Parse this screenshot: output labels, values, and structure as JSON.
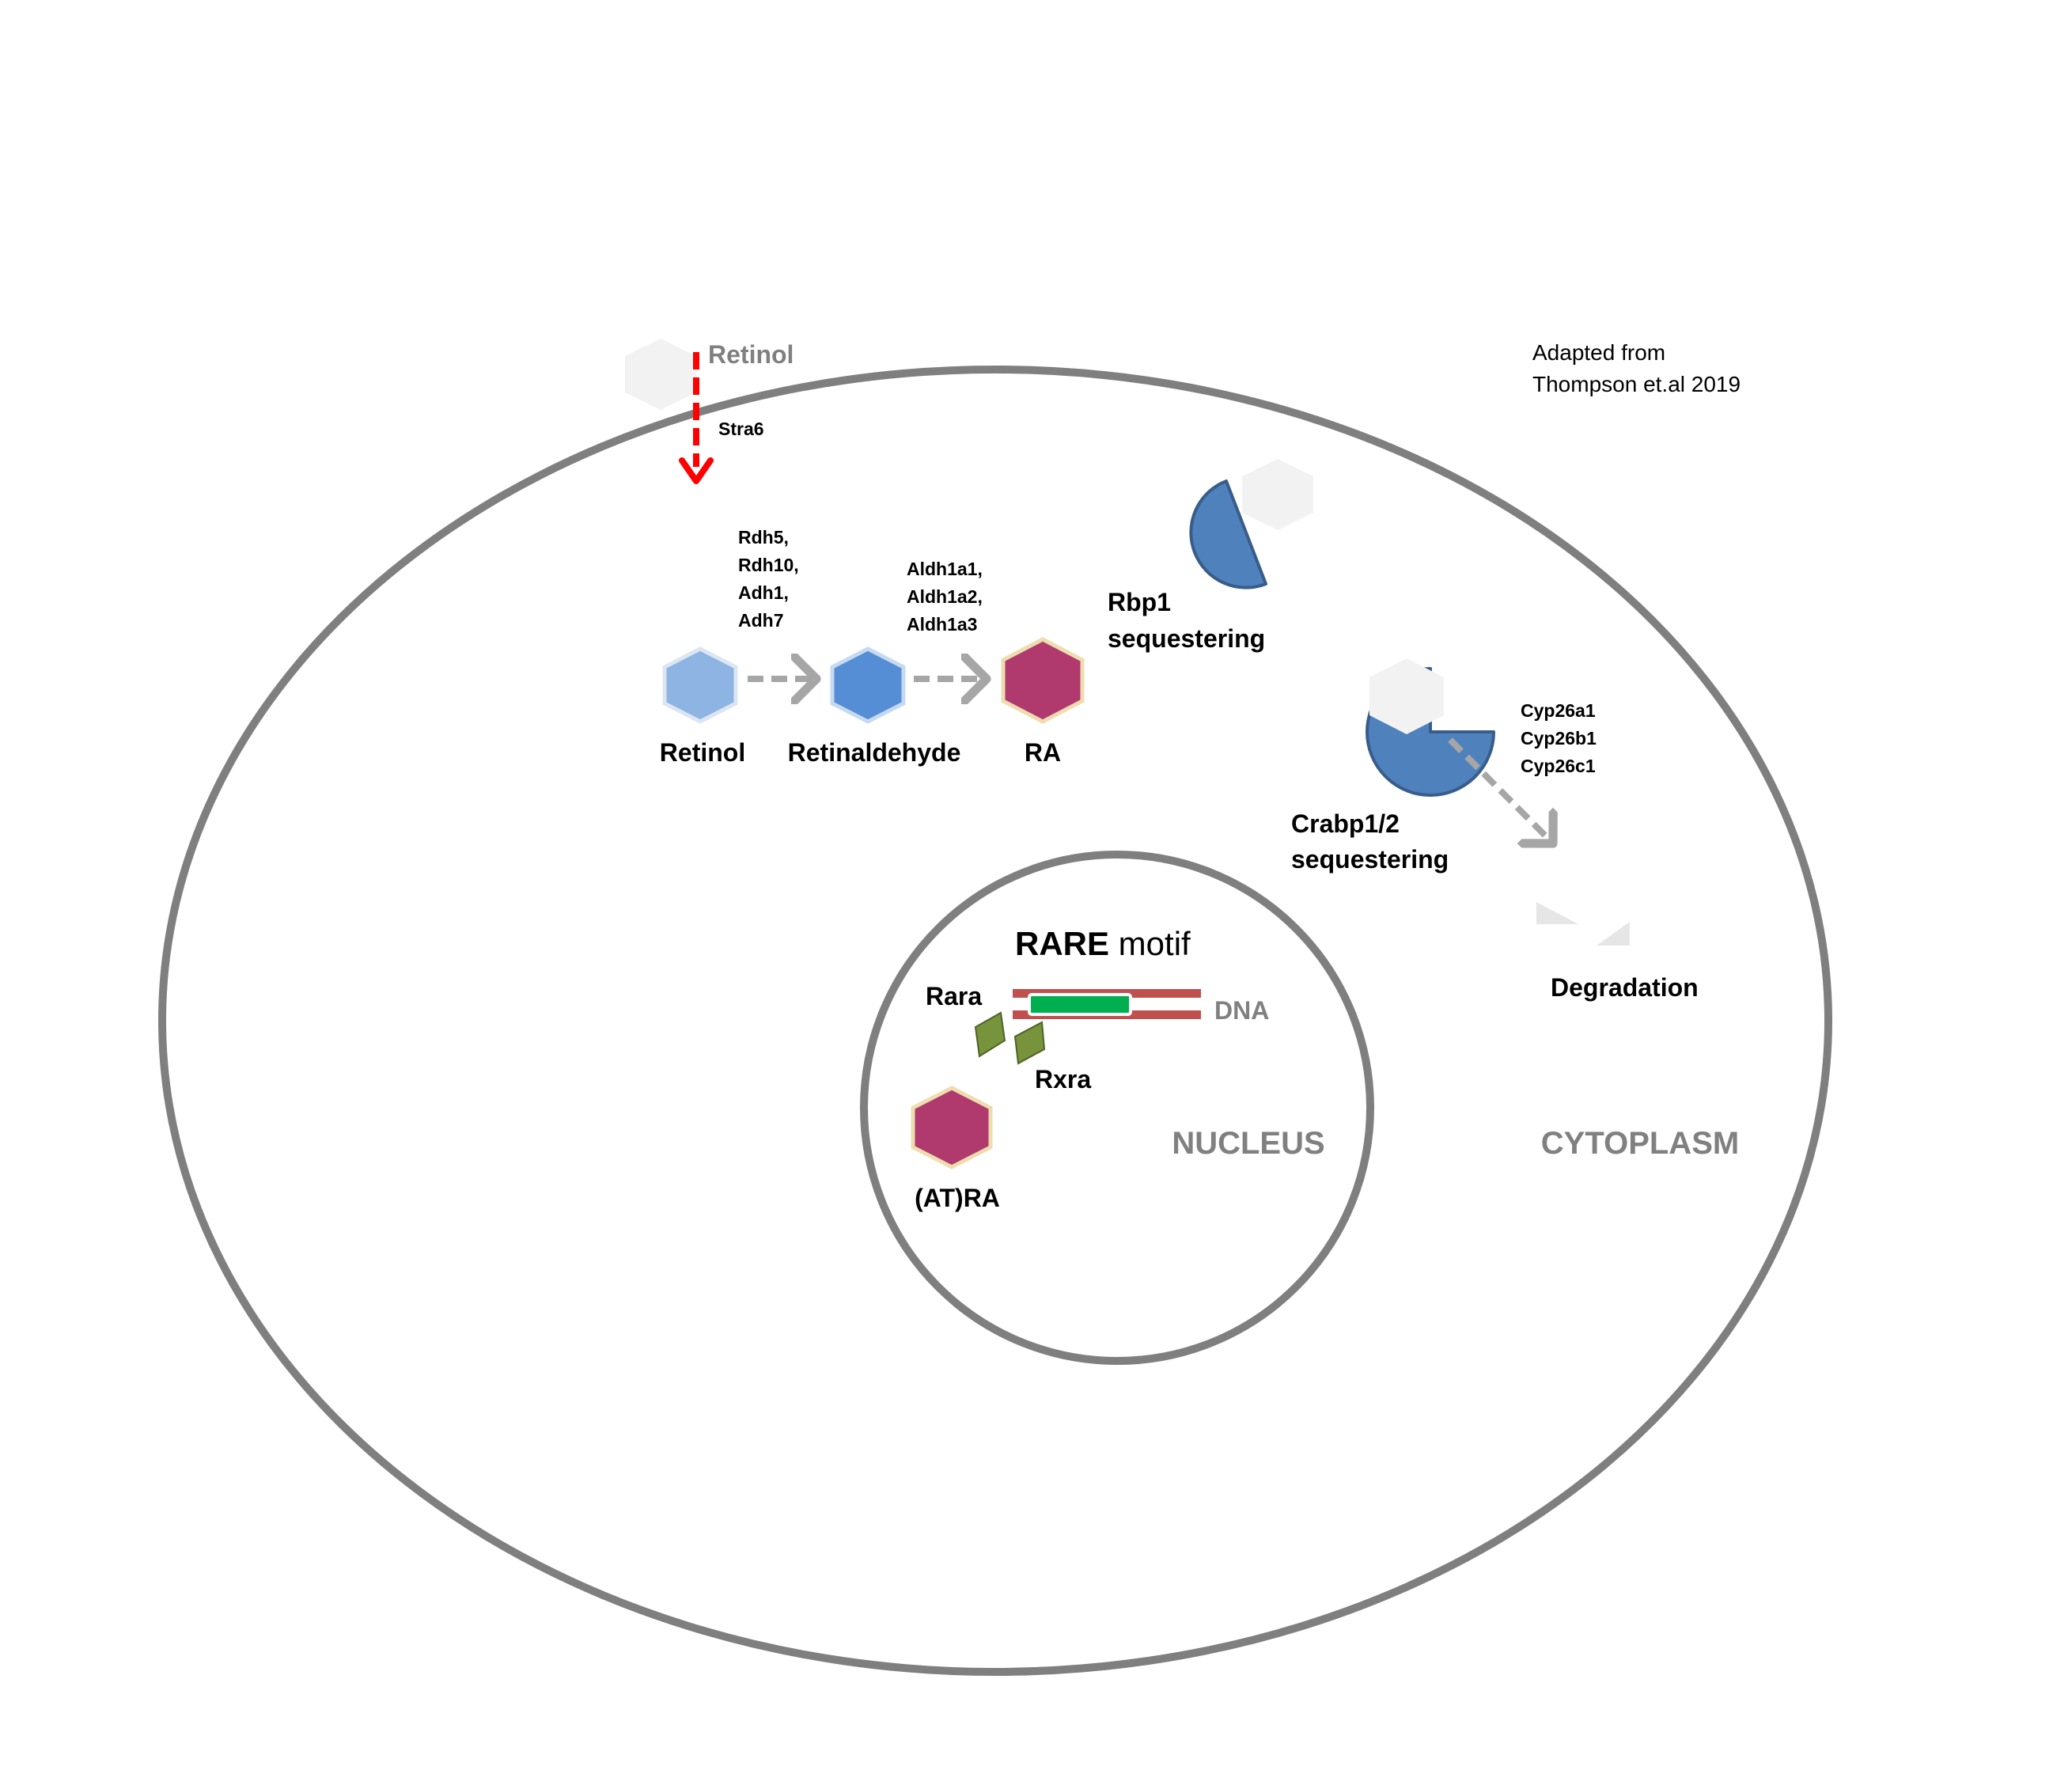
{
  "diagram": {
    "citation": {
      "line1": "Adapted from",
      "line2": "Thompson et.al 2019"
    },
    "extracellular": {
      "retinol_label": "Retinol",
      "transporter_label": "Stra6"
    },
    "pathway": {
      "step1_enzymes": [
        "Rdh5,",
        "Rdh10,",
        "Adh1,",
        "Adh7"
      ],
      "step2_enzymes": [
        "Aldh1a1,",
        "Aldh1a2,",
        "Aldh1a3"
      ],
      "retinol_label": "Retinol",
      "retinaldehyde_label": "Retinaldehyde",
      "ra_label": "RA"
    },
    "rbp1": {
      "line1": "Rbp1",
      "line2": "sequestering"
    },
    "crabp": {
      "line1": "Crabp1/2",
      "line2": "sequestering"
    },
    "cyp26": [
      "Cyp26a1",
      "Cyp26b1",
      "Cyp26c1"
    ],
    "degradation_label": "Degradation",
    "nucleus": {
      "rare_bold": "RARE",
      "rare_rest": " motif",
      "dna_label": "DNA",
      "rara_label": "Rara",
      "rxra_label": "Rxra",
      "atra_label": "(AT)RA",
      "nucleus_label": "NUCLEUS"
    },
    "cytoplasm_label": "CYTOPLASM",
    "colors": {
      "membrane": "#7f7f7f",
      "import_arrow": "#ff0000",
      "pathway_arrow": "#a6a6a6",
      "retinol_hex": "#8eb4e3",
      "retinaldehyde_hex": "#558ed5",
      "ra_hex": "#b03a6e",
      "binding_protein": "#4f81bd",
      "dna_strand": "#c0504d",
      "rare_box": "#00b050",
      "receptor": "#77933c",
      "ghost_hex": "#f2f2f2"
    }
  }
}
